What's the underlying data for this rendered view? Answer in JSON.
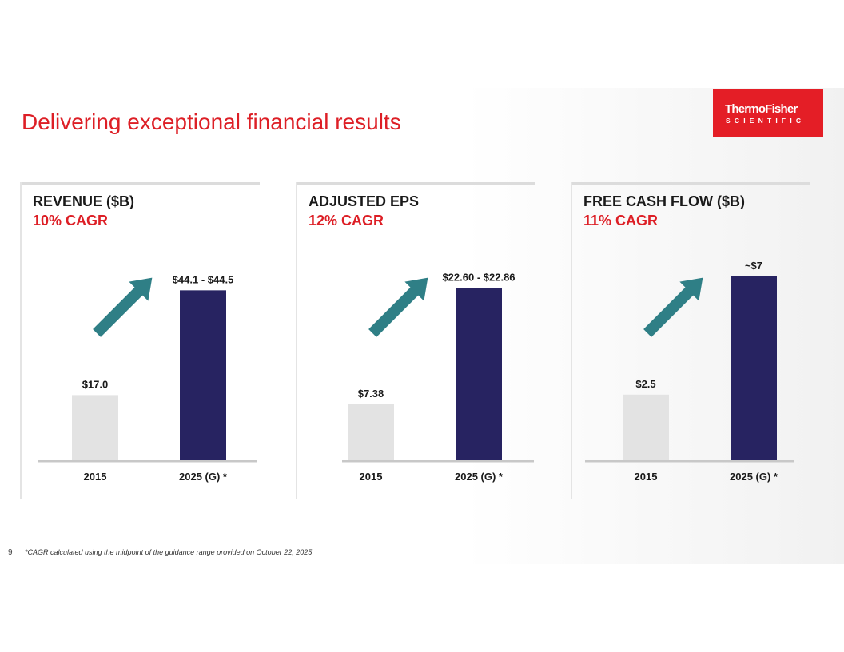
{
  "slide": {
    "title": "Delivering exceptional financial results",
    "page_number": "9",
    "footnote": "*CAGR calculated using the midpoint of the guidance range provided on October 22, 2025"
  },
  "logo": {
    "line1": "ThermoFisher",
    "line2": "SCIENTIFIC",
    "color": "#e41e26"
  },
  "colors": {
    "accent": "#dd1f26",
    "bar_2015": "#e3e3e3",
    "bar_2025": "#272361",
    "arrow": "#2f7f86"
  },
  "panels": [
    {
      "heading": "REVENUE ($B)",
      "cagr": "10% CAGR"
    },
    {
      "heading": "ADJUSTED EPS",
      "cagr": "12% CAGR"
    },
    {
      "heading": "FREE CASH FLOW ($B)",
      "cagr": "11% CAGR"
    }
  ],
  "chart_data": [
    {
      "type": "bar",
      "title": "REVENUE ($B)",
      "subtitle": "10% CAGR",
      "categories": [
        "2015",
        "2025 (G) *"
      ],
      "values": [
        17.0,
        44.3
      ],
      "range_2025": [
        44.1,
        44.5
      ],
      "data_labels": [
        "$17.0",
        "$44.1 - $44.5"
      ],
      "ylim": [
        0,
        50
      ]
    },
    {
      "type": "bar",
      "title": "ADJUSTED EPS",
      "subtitle": "12% CAGR",
      "categories": [
        "2015",
        "2025 (G) *"
      ],
      "values": [
        7.38,
        22.73
      ],
      "range_2025": [
        22.6,
        22.86
      ],
      "data_labels": [
        "$7.38",
        "$22.60 - $22.86"
      ],
      "ylim": [
        0,
        25.3
      ]
    },
    {
      "type": "bar",
      "title": "FREE CASH FLOW ($B)",
      "subtitle": "11% CAGR",
      "categories": [
        "2015",
        "2025 (G) *"
      ],
      "values": [
        2.5,
        7.0
      ],
      "data_labels": [
        "$2.5",
        "~$7"
      ],
      "ylim": [
        0,
        7.3
      ]
    }
  ]
}
